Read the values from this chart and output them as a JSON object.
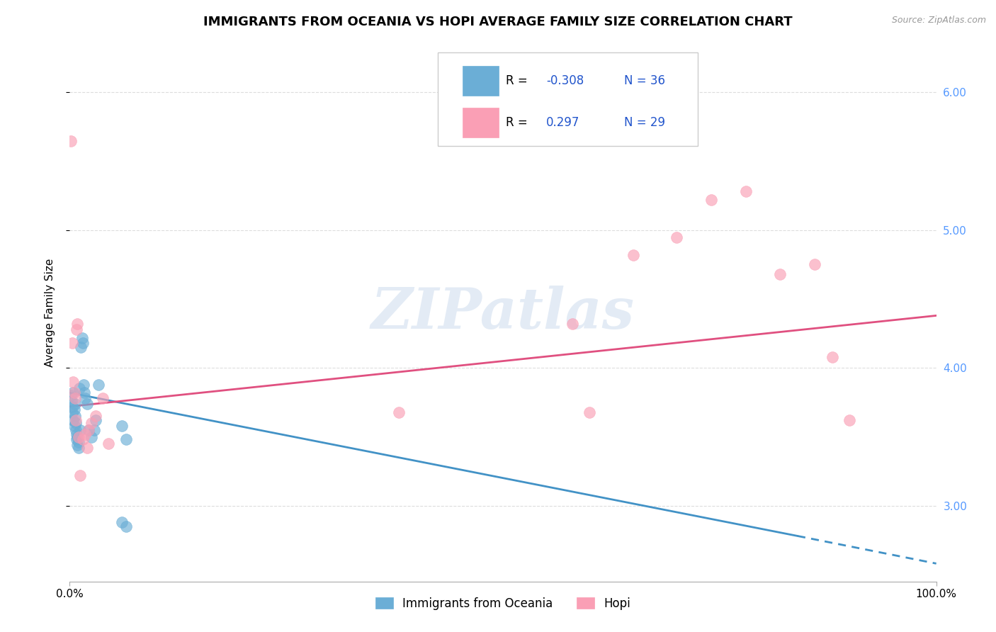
{
  "title": "IMMIGRANTS FROM OCEANIA VS HOPI AVERAGE FAMILY SIZE CORRELATION CHART",
  "source": "Source: ZipAtlas.com",
  "ylabel": "Average Family Size",
  "xlim": [
    0,
    1.0
  ],
  "ylim": [
    2.45,
    6.35
  ],
  "yticks": [
    3.0,
    4.0,
    5.0,
    6.0
  ],
  "xticks": [
    0.0,
    1.0
  ],
  "xticklabels": [
    "0.0%",
    "100.0%"
  ],
  "watermark": "ZIPatlas",
  "blue_scatter": [
    [
      0.001,
      3.8
    ],
    [
      0.002,
      3.76
    ],
    [
      0.003,
      3.72
    ],
    [
      0.003,
      3.68
    ],
    [
      0.004,
      3.82
    ],
    [
      0.004,
      3.62
    ],
    [
      0.005,
      3.58
    ],
    [
      0.005,
      3.7
    ],
    [
      0.006,
      3.65
    ],
    [
      0.006,
      3.74
    ],
    [
      0.007,
      3.55
    ],
    [
      0.007,
      3.6
    ],
    [
      0.008,
      3.52
    ],
    [
      0.008,
      3.48
    ],
    [
      0.009,
      3.44
    ],
    [
      0.009,
      3.5
    ],
    [
      0.01,
      3.46
    ],
    [
      0.01,
      3.42
    ],
    [
      0.011,
      3.85
    ],
    [
      0.012,
      3.55
    ],
    [
      0.013,
      4.15
    ],
    [
      0.014,
      4.22
    ],
    [
      0.015,
      4.18
    ],
    [
      0.016,
      3.88
    ],
    [
      0.017,
      3.82
    ],
    [
      0.018,
      3.78
    ],
    [
      0.02,
      3.74
    ],
    [
      0.022,
      3.55
    ],
    [
      0.025,
      3.5
    ],
    [
      0.028,
      3.55
    ],
    [
      0.03,
      3.62
    ],
    [
      0.033,
      3.88
    ],
    [
      0.06,
      3.58
    ],
    [
      0.065,
      3.48
    ],
    [
      0.06,
      2.88
    ],
    [
      0.065,
      2.85
    ]
  ],
  "pink_scatter": [
    [
      0.001,
      5.65
    ],
    [
      0.003,
      4.18
    ],
    [
      0.004,
      3.9
    ],
    [
      0.005,
      3.82
    ],
    [
      0.006,
      3.78
    ],
    [
      0.007,
      3.62
    ],
    [
      0.008,
      4.28
    ],
    [
      0.009,
      4.32
    ],
    [
      0.01,
      3.5
    ],
    [
      0.012,
      3.22
    ],
    [
      0.015,
      3.48
    ],
    [
      0.018,
      3.52
    ],
    [
      0.02,
      3.42
    ],
    [
      0.022,
      3.55
    ],
    [
      0.025,
      3.6
    ],
    [
      0.03,
      3.65
    ],
    [
      0.038,
      3.78
    ],
    [
      0.045,
      3.45
    ],
    [
      0.38,
      3.68
    ],
    [
      0.58,
      4.32
    ],
    [
      0.65,
      4.82
    ],
    [
      0.7,
      4.95
    ],
    [
      0.74,
      5.22
    ],
    [
      0.78,
      5.28
    ],
    [
      0.82,
      4.68
    ],
    [
      0.86,
      4.75
    ],
    [
      0.88,
      4.08
    ],
    [
      0.9,
      3.62
    ],
    [
      0.6,
      3.68
    ]
  ],
  "blue_line_solid": {
    "x": [
      0.0,
      0.84
    ],
    "y": [
      3.82,
      2.78
    ]
  },
  "blue_line_dash": {
    "x": [
      0.84,
      1.0
    ],
    "y": [
      2.78,
      2.58
    ]
  },
  "pink_line": {
    "x": [
      0.0,
      1.0
    ],
    "y": [
      3.72,
      4.38
    ]
  },
  "blue_color": "#6baed6",
  "pink_color": "#fa9fb5",
  "blue_line_color": "#4292c6",
  "pink_line_color": "#e05080",
  "right_ytick_color": "#5599ff",
  "grid_color": "#dddddd",
  "title_fontsize": 13,
  "axis_label_fontsize": 11,
  "tick_fontsize": 11,
  "legend_top": [
    {
      "label": "R = ",
      "r_val": "-0.308",
      "n_val": "N = 36",
      "color": "#6baed6"
    },
    {
      "label": "R = ",
      "r_val": "0.297",
      "n_val": "N = 29",
      "color": "#fa9fb5"
    }
  ],
  "legend_bottom": [
    {
      "label": "Immigrants from Oceania",
      "color": "#6baed6"
    },
    {
      "label": "Hopi",
      "color": "#fa9fb5"
    }
  ]
}
